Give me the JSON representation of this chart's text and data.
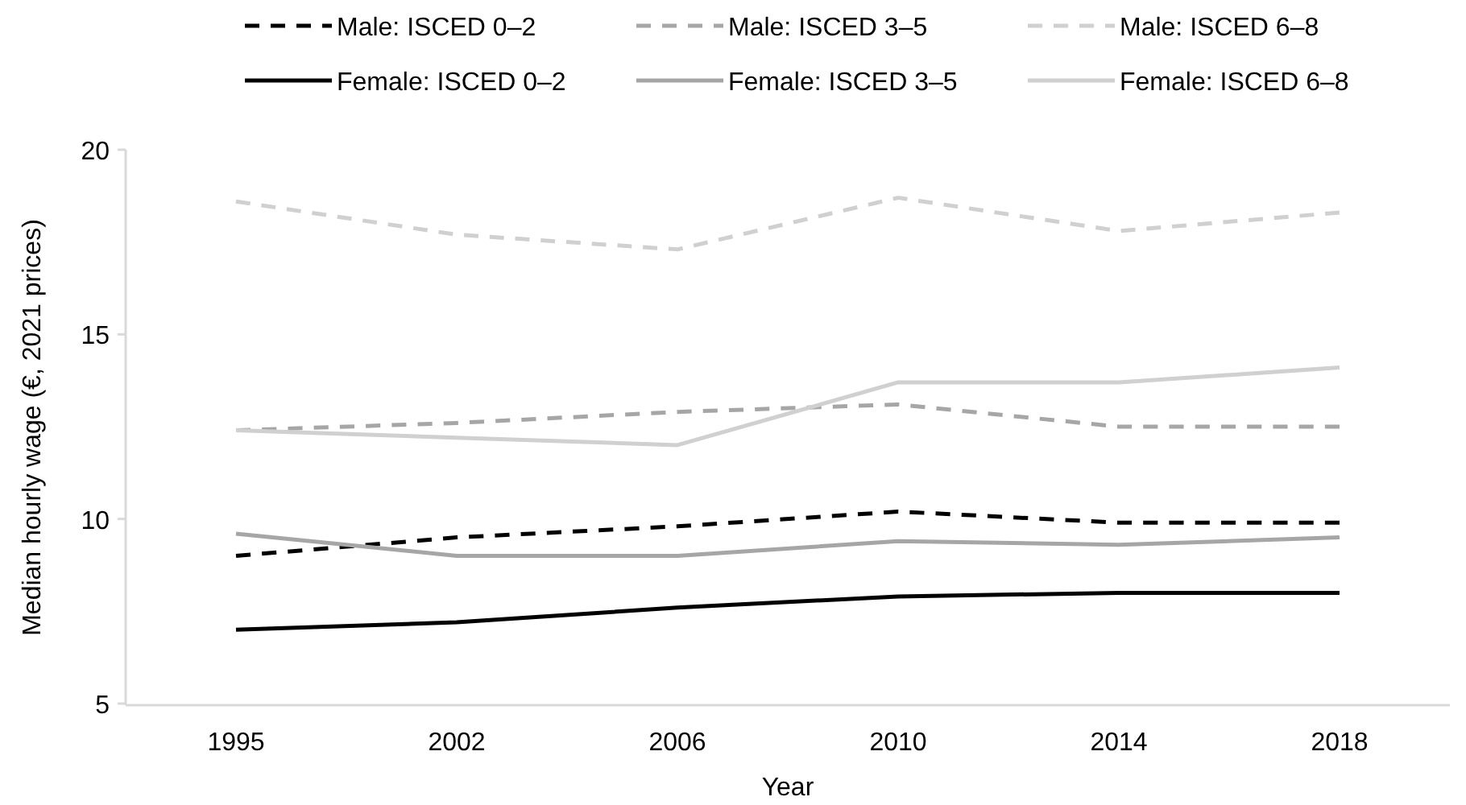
{
  "chart_data": {
    "type": "line",
    "xlabel": "Year",
    "ylabel": "Median hourly wage (€, 2021 prices)",
    "categories": [
      "1995",
      "2002",
      "2006",
      "2010",
      "2014",
      "2018"
    ],
    "ylim": [
      5,
      20
    ],
    "yticks": [
      5,
      10,
      15,
      20
    ],
    "grid": false,
    "legend": "top",
    "marker": "none",
    "series": [
      {
        "name": "Male: ISCED 0–2",
        "color": "#000000",
        "line_style": "dashed",
        "values": [
          9.0,
          9.5,
          9.8,
          10.2,
          9.9,
          9.9
        ]
      },
      {
        "name": "Male: ISCED 3–5",
        "color": "#a6a6a6",
        "line_style": "dashed",
        "values": [
          12.4,
          12.6,
          12.9,
          13.1,
          12.5,
          12.5
        ]
      },
      {
        "name": "Male: ISCED 6–8",
        "color": "#d0d0d0",
        "line_style": "dashed",
        "values": [
          18.6,
          17.7,
          17.3,
          18.7,
          17.8,
          18.3
        ]
      },
      {
        "name": "Female: ISCED 0–2",
        "color": "#000000",
        "line_style": "solid",
        "values": [
          7.0,
          7.2,
          7.6,
          7.9,
          8.0,
          8.0
        ]
      },
      {
        "name": "Female: ISCED 3–5",
        "color": "#a6a6a6",
        "line_style": "solid",
        "values": [
          9.6,
          9.0,
          9.0,
          9.4,
          9.3,
          9.5
        ]
      },
      {
        "name": "Female: ISCED 6–8",
        "color": "#d0d0d0",
        "line_style": "solid",
        "values": [
          12.4,
          12.2,
          12.0,
          13.7,
          13.7,
          14.1
        ]
      }
    ]
  }
}
